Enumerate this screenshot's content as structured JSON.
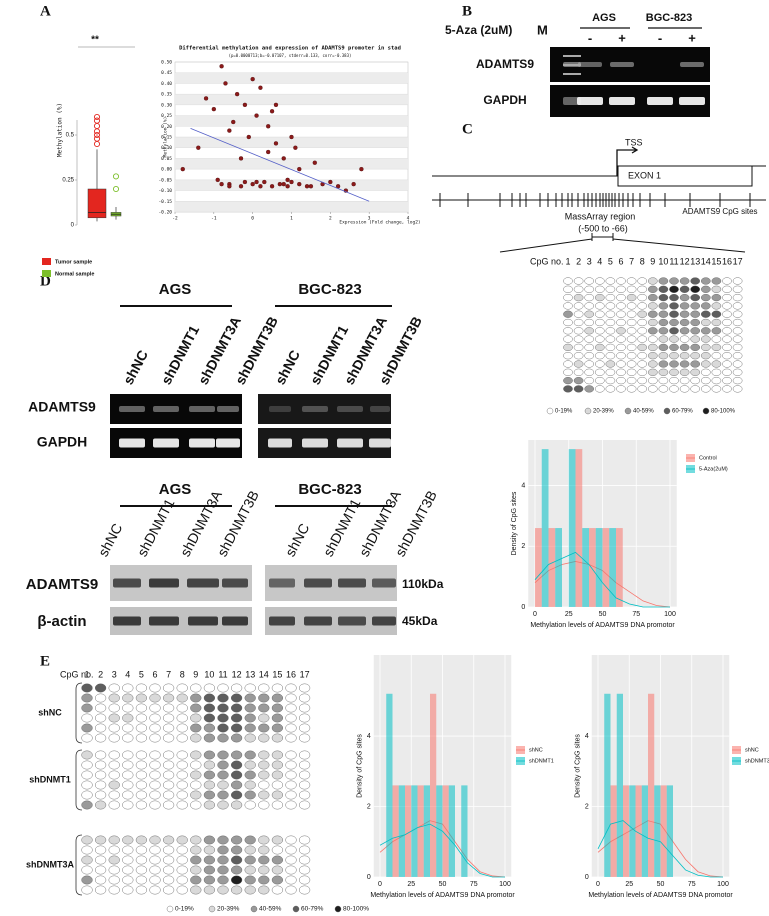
{
  "A": {
    "letter": "A",
    "boxplot": {
      "significance": "**",
      "ylabel": "Methylation (%)",
      "ylim": [
        0,
        1
      ],
      "yticks": [
        0,
        0.25,
        0.5
      ],
      "groups": [
        {
          "name": "Tumor sample",
          "color": "#e3261f",
          "min": 0.02,
          "q1": 0.04,
          "median": 0.07,
          "q3": 0.2,
          "max": 0.42,
          "outliers": [
            0.45,
            0.48,
            0.5,
            0.52,
            0.55,
            0.58,
            0.6
          ]
        },
        {
          "name": "Normal sample",
          "color": "#7cbf2a",
          "min": 0.03,
          "q1": 0.05,
          "median": 0.06,
          "q3": 0.07,
          "max": 0.1,
          "outliers": [
            0.2,
            0.27
          ]
        }
      ]
    },
    "scatter": {
      "type": "scatter",
      "title": "Differential methylation and expression of ADAMTS9 promoter  in stad",
      "subtitle": "(p=0.0000713;b=-0.07107, stderr=0.133, corr=-0.383)",
      "xlabel": "Expression (Fold change, log2)",
      "ylabel": "Methylation (%)",
      "xlim": [
        -2,
        4
      ],
      "ylim": [
        -0.2,
        0.5
      ],
      "xticks": [
        -2,
        -1,
        0,
        1,
        2,
        3,
        4
      ],
      "yticks": [
        {
          "value": -0.2,
          "label": "-0.20"
        },
        -0.15,
        {
          "value": -0.1,
          "label": "-0.10"
        },
        -0.05,
        {
          "value": 0,
          "label": "0.00"
        },
        0.05,
        {
          "value": 0.1,
          "label": "0.10"
        },
        0.15,
        {
          "value": 0.2,
          "label": "0.20"
        },
        0.25,
        {
          "value": 0.3,
          "label": "0.30"
        },
        0.35,
        {
          "value": 0.4,
          "label": "0.40"
        },
        0.45,
        {
          "value": 0.5,
          "label": "0.50"
        }
      ],
      "color": "#8b1a1a",
      "x": [
        -1.8,
        -1.4,
        -1.2,
        -1.0,
        -0.9,
        -0.8,
        -0.7,
        -0.6,
        -0.5,
        -0.4,
        -0.3,
        -0.2,
        -0.1,
        0,
        0.1,
        0.2,
        0.3,
        0.4,
        0.5,
        0.6,
        0.7,
        0.8,
        0.9,
        1.0,
        1.1,
        1.2,
        1.4,
        1.6,
        1.8,
        2.0,
        2.2,
        2.4,
        2.6,
        2.8,
        -0.8,
        -0.6,
        -0.2,
        0,
        0.2,
        0.4,
        0.6,
        0.8,
        1.0,
        1.2,
        -0.6,
        -0.3,
        0.1,
        0.5,
        0.9,
        1.5
      ],
      "y": [
        0.0,
        0.1,
        0.33,
        0.28,
        -0.05,
        0.48,
        0.4,
        -0.07,
        0.22,
        0.35,
        -0.08,
        0.3,
        0.15,
        -0.07,
        0.25,
        0.38,
        -0.06,
        0.2,
        -0.08,
        0.12,
        -0.07,
        0.05,
        -0.08,
        -0.06,
        0.1,
        -0.07,
        -0.08,
        0.03,
        -0.07,
        -0.06,
        -0.08,
        -0.1,
        -0.07,
        0.0,
        -0.07,
        0.18,
        -0.06,
        0.42,
        -0.08,
        0.08,
        0.3,
        -0.07,
        0.15,
        0.0,
        -0.08,
        0.05,
        -0.06,
        0.27,
        -0.05,
        -0.08
      ],
      "fit_line": {
        "color": "#5560c8",
        "x": [
          -1.6,
          3
        ],
        "y": [
          0.19,
          -0.15
        ]
      }
    }
  },
  "B": {
    "letter": "B",
    "treatment": "5-Aza (2uM)",
    "marker": "M",
    "cell_lines": [
      "AGS",
      "BGC-823"
    ],
    "doses": [
      "-",
      "+",
      "-",
      "+"
    ],
    "genes": [
      "ADAMTS9",
      "GAPDH"
    ]
  },
  "C": {
    "letter": "C",
    "tss": "TSS",
    "exon": "EXON 1",
    "cpg_sites": "ADAMTS9 CpG sites",
    "region": "MassArray region",
    "region_range": "(-500 to -66)",
    "cpg_label": "CpG no.",
    "cpg_numbers": [
      1,
      2,
      3,
      4,
      5,
      6,
      7,
      8,
      9,
      10,
      11,
      12,
      13,
      14,
      15,
      16,
      17
    ],
    "levels": [
      "0-19%",
      "20-39%",
      "40-59%",
      "60-79%",
      "80-100%"
    ],
    "level_colors": [
      "#ffffff",
      "#d9d9d9",
      "#9a9a9a",
      "#5e5e5e",
      "#1e1e1e"
    ],
    "matrix": [
      [
        0,
        0,
        0,
        0,
        0,
        0,
        0,
        0,
        1,
        2,
        2,
        2,
        3,
        2,
        2,
        0,
        0
      ],
      [
        0,
        0,
        0,
        0,
        0,
        0,
        0,
        0,
        2,
        3,
        4,
        3,
        4,
        2,
        1,
        0,
        0
      ],
      [
        0,
        1,
        0,
        1,
        0,
        0,
        1,
        0,
        2,
        3,
        3,
        2,
        3,
        2,
        2,
        0,
        0
      ],
      [
        0,
        0,
        0,
        0,
        0,
        0,
        0,
        0,
        1,
        2,
        3,
        2,
        2,
        2,
        1,
        0,
        0
      ],
      [
        2,
        0,
        1,
        0,
        0,
        0,
        0,
        1,
        2,
        2,
        3,
        2,
        2,
        3,
        3,
        0,
        0
      ],
      [
        0,
        0,
        0,
        0,
        0,
        0,
        0,
        0,
        1,
        2,
        2,
        2,
        2,
        1,
        1,
        0,
        0
      ],
      [
        0,
        0,
        1,
        0,
        0,
        1,
        0,
        0,
        2,
        2,
        3,
        2,
        2,
        2,
        2,
        0,
        0
      ],
      [
        0,
        0,
        0,
        0,
        0,
        0,
        0,
        0,
        0,
        1,
        1,
        0,
        1,
        1,
        0,
        0,
        0
      ],
      [
        1,
        0,
        0,
        1,
        0,
        0,
        0,
        1,
        1,
        2,
        2,
        2,
        2,
        1,
        1,
        0,
        0
      ],
      [
        0,
        0,
        0,
        0,
        0,
        0,
        0,
        0,
        1,
        1,
        1,
        1,
        1,
        1,
        0,
        0,
        0
      ],
      [
        0,
        1,
        0,
        0,
        1,
        0,
        0,
        0,
        1,
        2,
        2,
        2,
        2,
        1,
        1,
        0,
        0
      ],
      [
        0,
        0,
        0,
        0,
        0,
        0,
        0,
        0,
        1,
        1,
        1,
        1,
        1,
        0,
        0,
        0,
        0
      ],
      [
        2,
        2,
        0,
        0,
        0,
        0,
        0,
        0,
        0,
        0,
        0,
        0,
        0,
        0,
        0,
        0,
        0
      ],
      [
        3,
        3,
        2,
        0,
        0,
        0,
        0,
        0,
        0,
        0,
        0,
        0,
        0,
        0,
        0,
        0,
        0
      ]
    ],
    "histogram": {
      "type": "histogram",
      "ylabel": "Density of CpG sites",
      "xlabel": "Methylation levels of ADAMTS9 DNA promotor",
      "xlim": [
        -5,
        105
      ],
      "xticks": [
        0,
        25,
        50,
        75,
        100
      ],
      "ylim": [
        0,
        5.5
      ],
      "yticks": [
        0,
        2,
        4
      ],
      "bins": [
        0,
        10,
        20,
        30,
        40,
        50,
        60,
        70
      ],
      "density_x": [
        0,
        10,
        20,
        30,
        40,
        50,
        60,
        70,
        80,
        90,
        100
      ],
      "series": [
        {
          "name": "Control",
          "color": "#f8766d",
          "values": [
            2.6,
            2.6,
            0,
            5.2,
            2.6,
            2.6,
            2.6
          ],
          "density": [
            0.8,
            1.2,
            1.4,
            1.5,
            1.4,
            1.2,
            0.8,
            0.5,
            0.2,
            0.05,
            0
          ]
        },
        {
          "name": "5-Aza(2uM)",
          "color": "#00bfc4",
          "values": [
            5.2,
            2.6,
            5.2,
            2.6,
            2.6,
            2.6,
            0
          ],
          "density": [
            0.9,
            1.4,
            1.6,
            1.8,
            1.4,
            0.8,
            0.3,
            0.1,
            0,
            0,
            0
          ]
        }
      ]
    }
  },
  "D": {
    "letter": "D",
    "rt_pcr": {
      "cell_lines": [
        "AGS",
        "BGC-823"
      ],
      "lanes": [
        "shNC",
        "shDNMT1",
        "shDNMT3A",
        "shDNMT3B"
      ],
      "genes": [
        "ADAMTS9",
        "GAPDH"
      ]
    },
    "western": {
      "cell_lines": [
        "AGS",
        "BGC-823"
      ],
      "lanes": [
        "shNC",
        "shDNMT1",
        "shDNMT3A",
        "shDNMT3B"
      ],
      "proteins": [
        "ADAMTS9",
        "β-actin"
      ],
      "sizes": [
        "110kDa",
        "45kDa"
      ]
    }
  },
  "E": {
    "letter": "E",
    "cpg_label": "CpG no.",
    "cpg_numbers": [
      1,
      2,
      3,
      4,
      5,
      6,
      7,
      8,
      9,
      10,
      11,
      12,
      13,
      14,
      15,
      16,
      17
    ],
    "levels": [
      "0-19%",
      "20-39%",
      "40-59%",
      "60-79%",
      "80-100%"
    ],
    "level_colors": [
      "#ffffff",
      "#d9d9d9",
      "#9a9a9a",
      "#5e5e5e",
      "#1e1e1e"
    ],
    "groups": [
      {
        "label": "shNC",
        "rows": [
          [
            3,
            3,
            0,
            0,
            0,
            0,
            0,
            0,
            0,
            0,
            0,
            0,
            0,
            0,
            0,
            0,
            0
          ],
          [
            2,
            0,
            1,
            1,
            1,
            1,
            1,
            1,
            2,
            3,
            3,
            3,
            2,
            2,
            2,
            0,
            0
          ],
          [
            2,
            0,
            0,
            0,
            0,
            0,
            0,
            0,
            2,
            3,
            3,
            3,
            2,
            2,
            2,
            0,
            0
          ],
          [
            0,
            0,
            1,
            1,
            0,
            0,
            0,
            0,
            1,
            3,
            3,
            3,
            2,
            1,
            2,
            0,
            0
          ],
          [
            2,
            0,
            0,
            0,
            0,
            0,
            0,
            0,
            2,
            2,
            3,
            3,
            2,
            2,
            2,
            0,
            0
          ],
          [
            0,
            0,
            0,
            0,
            0,
            0,
            0,
            0,
            1,
            2,
            2,
            2,
            1,
            1,
            1,
            0,
            0
          ]
        ]
      },
      {
        "label": "shDNMT1",
        "rows": [
          [
            1,
            0,
            0,
            0,
            0,
            0,
            0,
            0,
            1,
            2,
            2,
            2,
            2,
            1,
            1,
            0,
            0
          ],
          [
            0,
            0,
            0,
            0,
            0,
            0,
            0,
            0,
            0,
            1,
            2,
            3,
            1,
            1,
            1,
            0,
            0
          ],
          [
            0,
            0,
            0,
            0,
            0,
            0,
            0,
            0,
            1,
            2,
            2,
            3,
            2,
            1,
            1,
            0,
            0
          ],
          [
            0,
            0,
            1,
            0,
            0,
            0,
            0,
            0,
            0,
            1,
            1,
            2,
            1,
            0,
            0,
            0,
            0
          ],
          [
            0,
            0,
            0,
            0,
            0,
            0,
            0,
            0,
            1,
            2,
            2,
            3,
            2,
            1,
            1,
            0,
            0
          ],
          [
            2,
            1,
            0,
            0,
            0,
            0,
            0,
            0,
            0,
            1,
            1,
            1,
            0,
            0,
            0,
            0,
            0
          ]
        ]
      },
      {
        "label": "shDNMT3A",
        "rows": [
          [
            1,
            1,
            1,
            1,
            1,
            1,
            1,
            1,
            1,
            2,
            2,
            2,
            2,
            1,
            1,
            0,
            0
          ],
          [
            0,
            0,
            0,
            0,
            0,
            0,
            0,
            0,
            1,
            1,
            2,
            2,
            1,
            1,
            0,
            0,
            0
          ],
          [
            1,
            0,
            1,
            0,
            0,
            0,
            0,
            0,
            2,
            2,
            2,
            3,
            2,
            2,
            2,
            0,
            0
          ],
          [
            0,
            0,
            0,
            0,
            0,
            0,
            0,
            0,
            1,
            2,
            2,
            2,
            1,
            1,
            1,
            0,
            0
          ],
          [
            2,
            0,
            0,
            0,
            0,
            0,
            0,
            0,
            2,
            2,
            2,
            4,
            2,
            2,
            2,
            0,
            0
          ],
          [
            0,
            0,
            0,
            0,
            0,
            0,
            0,
            0,
            1,
            1,
            1,
            1,
            1,
            1,
            0,
            0,
            0
          ]
        ]
      }
    ],
    "histograms": [
      {
        "type": "histogram",
        "ylabel": "Density of CpG sites",
        "xlabel": "Methylation levels of ADAMTS9 DNA promotor",
        "xlim": [
          -5,
          105
        ],
        "xticks": [
          0,
          25,
          50,
          75,
          100
        ],
        "ylim": [
          0,
          6.3
        ],
        "yticks": [
          0,
          2,
          4
        ],
        "bins": [
          0,
          10,
          20,
          30,
          40,
          50,
          60,
          70
        ],
        "density_x": [
          0,
          10,
          20,
          30,
          40,
          50,
          60,
          70,
          80,
          90,
          100
        ],
        "series": [
          {
            "name": "shNC",
            "color": "#f8766d",
            "values": [
              0,
              2.6,
              2.6,
              2.6,
              5.2,
              2.6,
              0
            ],
            "density": [
              0.7,
              1.0,
              1.2,
              1.4,
              1.6,
              1.5,
              1.0,
              0.5,
              0.15,
              0.03,
              0
            ]
          },
          {
            "name": "shDNMT1",
            "color": "#00bfc4",
            "values": [
              5.2,
              2.6,
              2.6,
              2.6,
              2.6,
              2.6,
              2.6
            ],
            "density": [
              0.9,
              1.1,
              1.2,
              1.4,
              1.5,
              1.3,
              0.9,
              0.4,
              0.1,
              0,
              0
            ]
          }
        ]
      },
      {
        "type": "histogram",
        "ylabel": "Density of CpG sites",
        "xlabel": "Methylation levels of ADAMTS9 DNA promotor",
        "xlim": [
          -5,
          105
        ],
        "xticks": [
          0,
          25,
          50,
          75,
          100
        ],
        "ylim": [
          0,
          6.3
        ],
        "yticks": [
          0,
          2,
          4
        ],
        "bins": [
          0,
          10,
          20,
          30,
          40,
          50,
          60,
          70
        ],
        "density_x": [
          0,
          10,
          20,
          30,
          40,
          50,
          60,
          70,
          80,
          90,
          100
        ],
        "series": [
          {
            "name": "shNC",
            "color": "#f8766d",
            "values": [
              0,
              2.6,
              2.6,
              2.6,
              5.2,
              2.6,
              0
            ],
            "density": [
              0.7,
              1.0,
              1.2,
              1.4,
              1.6,
              1.5,
              1.0,
              0.5,
              0.15,
              0.03,
              0
            ]
          },
          {
            "name": "shDNMT3A",
            "color": "#00bfc4",
            "values": [
              5.2,
              5.2,
              2.6,
              2.6,
              2.6,
              2.6,
              0
            ],
            "density": [
              0.8,
              1.5,
              1.6,
              1.3,
              1.1,
              1.0,
              0.6,
              0.2,
              0.05,
              0,
              0
            ]
          }
        ]
      }
    ]
  }
}
